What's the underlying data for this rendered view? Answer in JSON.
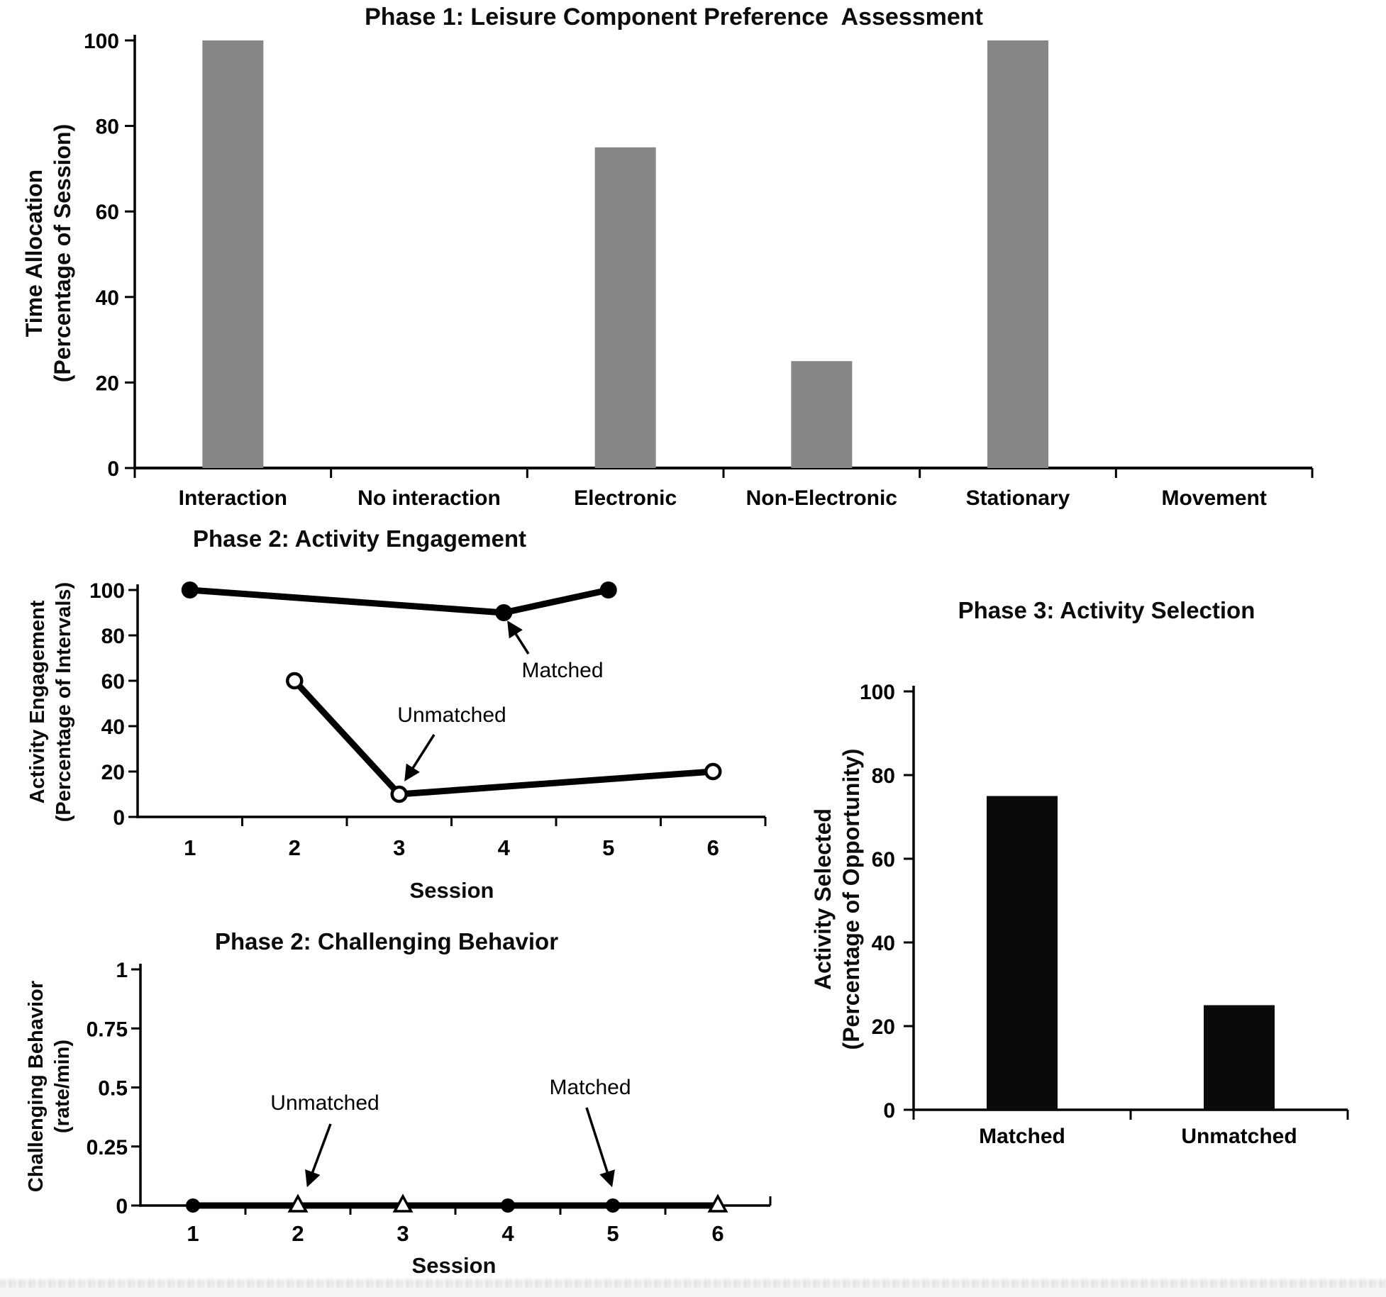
{
  "chart_data": [
    {
      "id": "phase1",
      "type": "bar",
      "title": "Phase 1: Leisure Component Preference  Assessment",
      "ylabel_line1": "Time Allocation",
      "ylabel_line2": "(Percentage of Session)",
      "categories": [
        "Interaction",
        "No interaction",
        "Electronic",
        "Non-Electronic",
        "Stationary",
        "Movement"
      ],
      "values": [
        100,
        0,
        75,
        25,
        100,
        0
      ],
      "ylim": [
        0,
        100
      ],
      "yticks": [
        0,
        20,
        40,
        60,
        80,
        100
      ],
      "grid": false,
      "bar_color": "#878787"
    },
    {
      "id": "phase2_engagement",
      "type": "line",
      "title": "Phase 2: Activity Engagement",
      "ylabel_line1": "Activity Engagement",
      "ylabel_line2": "(Percentage of Intervals)",
      "xlabel": "Session",
      "x_categories": [
        "1",
        "2",
        "3",
        "4",
        "5",
        "6"
      ],
      "ylim": [
        0,
        100
      ],
      "yticks": [
        0,
        20,
        40,
        60,
        80,
        100
      ],
      "grid": false,
      "line_color": "#000000",
      "series": [
        {
          "name": "Matched",
          "marker": "filled-circle",
          "points": [
            [
              1,
              100
            ],
            [
              4,
              90
            ],
            [
              5,
              100
            ]
          ]
        },
        {
          "name": "Unmatched",
          "marker": "open-circle",
          "points": [
            [
              2,
              60
            ],
            [
              3,
              10
            ],
            [
              6,
              20
            ]
          ]
        }
      ],
      "annotations": [
        {
          "label": "Matched",
          "target": [
            4,
            90
          ]
        },
        {
          "label": "Unmatched",
          "target": [
            3,
            10
          ]
        }
      ]
    },
    {
      "id": "phase2_behavior",
      "type": "line",
      "title": "Phase 2: Challenging Behavior",
      "ylabel_line1": "Challenging Behavior",
      "ylabel_line2": "(rate/min)",
      "xlabel": "Session",
      "x_categories": [
        "1",
        "2",
        "3",
        "4",
        "5",
        "6"
      ],
      "ylim": [
        0,
        1
      ],
      "yticks": [
        0,
        0.25,
        0.5,
        0.75,
        1
      ],
      "ytick_labels": [
        "0",
        "0.25",
        "0.5",
        "0.75",
        "1"
      ],
      "grid": false,
      "line_color": "#000000",
      "connector_line": {
        "from_x": 1,
        "to_x": 6,
        "y": 0
      },
      "series": [
        {
          "name": "Matched",
          "marker": "filled-circle",
          "points": [
            [
              1,
              0
            ],
            [
              4,
              0
            ],
            [
              5,
              0
            ]
          ]
        },
        {
          "name": "Unmatched",
          "marker": "open-triangle",
          "points": [
            [
              2,
              0
            ],
            [
              3,
              0
            ],
            [
              6,
              0
            ]
          ]
        }
      ],
      "annotations": [
        {
          "label": "Unmatched",
          "target": [
            2,
            0
          ]
        },
        {
          "label": "Matched",
          "target": [
            5,
            0
          ]
        }
      ]
    },
    {
      "id": "phase3",
      "type": "bar",
      "title": "Phase 3: Activity Selection",
      "ylabel_line1": "Activity Selected",
      "ylabel_line2": "(Percentage of Opportunity)",
      "categories": [
        "Matched",
        "Unmatched"
      ],
      "values": [
        75,
        25
      ],
      "ylim": [
        0,
        100
      ],
      "yticks": [
        0,
        20,
        40,
        60,
        80,
        100
      ],
      "grid": false,
      "bar_color": "#0a0a0a"
    }
  ]
}
